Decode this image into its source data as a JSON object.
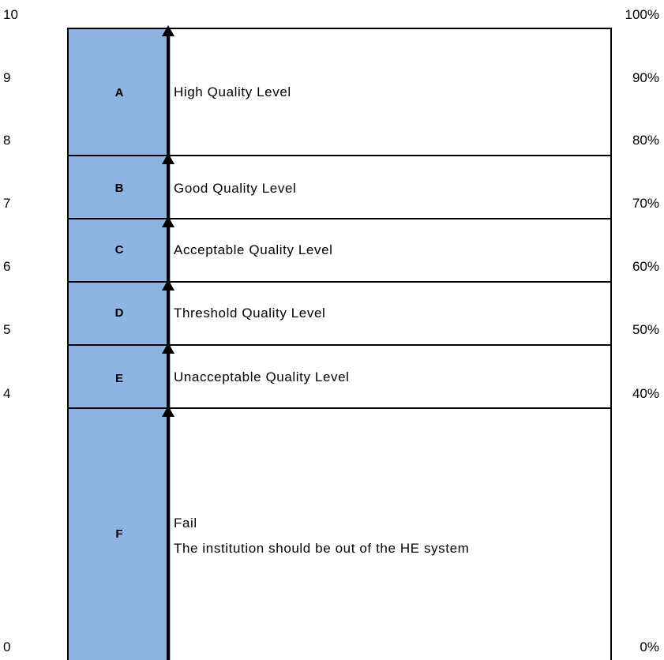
{
  "left_axis": {
    "ticks": [
      {
        "label": "10",
        "value": 10
      },
      {
        "label": "9",
        "value": 9
      },
      {
        "label": "8",
        "value": 8
      },
      {
        "label": "7",
        "value": 7
      },
      {
        "label": "6",
        "value": 6
      },
      {
        "label": "5",
        "value": 5
      },
      {
        "label": "4",
        "value": 4
      },
      {
        "label": "0",
        "value": 0
      }
    ]
  },
  "right_axis": {
    "ticks": [
      {
        "label": "100%",
        "value": 100
      },
      {
        "label": "90%",
        "value": 90
      },
      {
        "label": "80%",
        "value": 80
      },
      {
        "label": "70%",
        "value": 70
      },
      {
        "label": "60%",
        "value": 60
      },
      {
        "label": "50%",
        "value": 50
      },
      {
        "label": "40%",
        "value": 40
      },
      {
        "label": "0%",
        "value": 0
      }
    ]
  },
  "grades": [
    {
      "letter": "A",
      "description_lines": [
        "High Quality Level"
      ],
      "range": [
        8,
        10
      ]
    },
    {
      "letter": "B",
      "description_lines": [
        "Good Quality Level"
      ],
      "range": [
        7,
        8
      ]
    },
    {
      "letter": "C",
      "description_lines": [
        "Acceptable Quality Level"
      ],
      "range": [
        6,
        7
      ]
    },
    {
      "letter": "D",
      "description_lines": [
        "Threshold Quality Level"
      ],
      "range": [
        5,
        6
      ]
    },
    {
      "letter": "E",
      "description_lines": [
        "Unacceptable Quality Level"
      ],
      "range": [
        4,
        5
      ]
    },
    {
      "letter": "F",
      "description_lines": [
        "Fail",
        "The institution should be out of the HE system"
      ],
      "range": [
        0,
        4
      ]
    }
  ],
  "colors": {
    "band_fill": "#8eb4e3",
    "border": "#000000",
    "arrow": "#000000"
  }
}
